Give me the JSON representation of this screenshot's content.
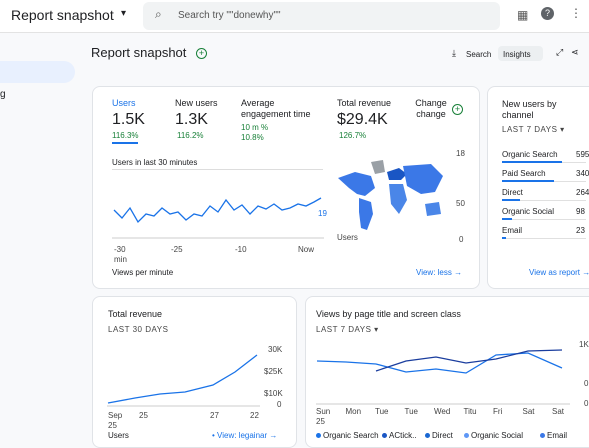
{
  "topbar": {
    "title": "Report snapshot",
    "search": "Search try \"\"donewhy\"\""
  },
  "sidebar": {
    "item": "g"
  },
  "header": {
    "title": "Report snapshot",
    "search": "Search",
    "insights": "Insights"
  },
  "overview": {
    "metrics": [
      {
        "label": "Users",
        "value": "1.5K",
        "change": "116.3%"
      },
      {
        "label": "New users",
        "value": "1.3K",
        "change": "116.2%"
      },
      {
        "label": "Average engagement time",
        "value": "10 m %",
        "change": "10.8%"
      },
      {
        "label": "Total revenue",
        "value": "$29.4K",
        "change": "126.7%"
      },
      {
        "label": "Change change"
      }
    ],
    "realtime_title": "Users in last 30 minutes",
    "realtime_last": "19",
    "x_labels": [
      "-30 min",
      "-25",
      "-10",
      "Now"
    ],
    "map_label": "Users",
    "map_ticks": [
      "18",
      "50",
      "0"
    ],
    "footer": "Views per minute",
    "link": "View: less →"
  },
  "channels": {
    "title": "New users by channel",
    "period": "LAST 7 DAYS",
    "rows": [
      {
        "name": "Organic Search",
        "value": "595"
      },
      {
        "name": "Paid Search",
        "value": "340"
      },
      {
        "name": "Direct",
        "value": "264"
      },
      {
        "name": "Organic Social",
        "value": "98"
      },
      {
        "name": "Email",
        "value": "23"
      }
    ],
    "link": "View as report →"
  },
  "revenue": {
    "title": "Total revenue",
    "period": "LAST 30 DAYS",
    "y_labels": [
      "30K",
      "$25K",
      "$10K",
      "0"
    ],
    "x_labels": [
      "Sep 25",
      "25",
      "27",
      "22"
    ],
    "footer": "Users",
    "link": "View: legainar →"
  },
  "views": {
    "title": "Views by page title and screen class",
    "period": "LAST 7 DAYS",
    "y_labels": [
      "1K",
      "0",
      "0"
    ],
    "x_labels": [
      "Sun 25",
      "Mon",
      "Tue",
      "Tue",
      "Wed",
      "Titu",
      "Fri",
      "Sat",
      "Sat"
    ],
    "legend": [
      "Organic Search",
      "ACtick..",
      "Direct",
      "Organic Social",
      "Email"
    ]
  }
}
